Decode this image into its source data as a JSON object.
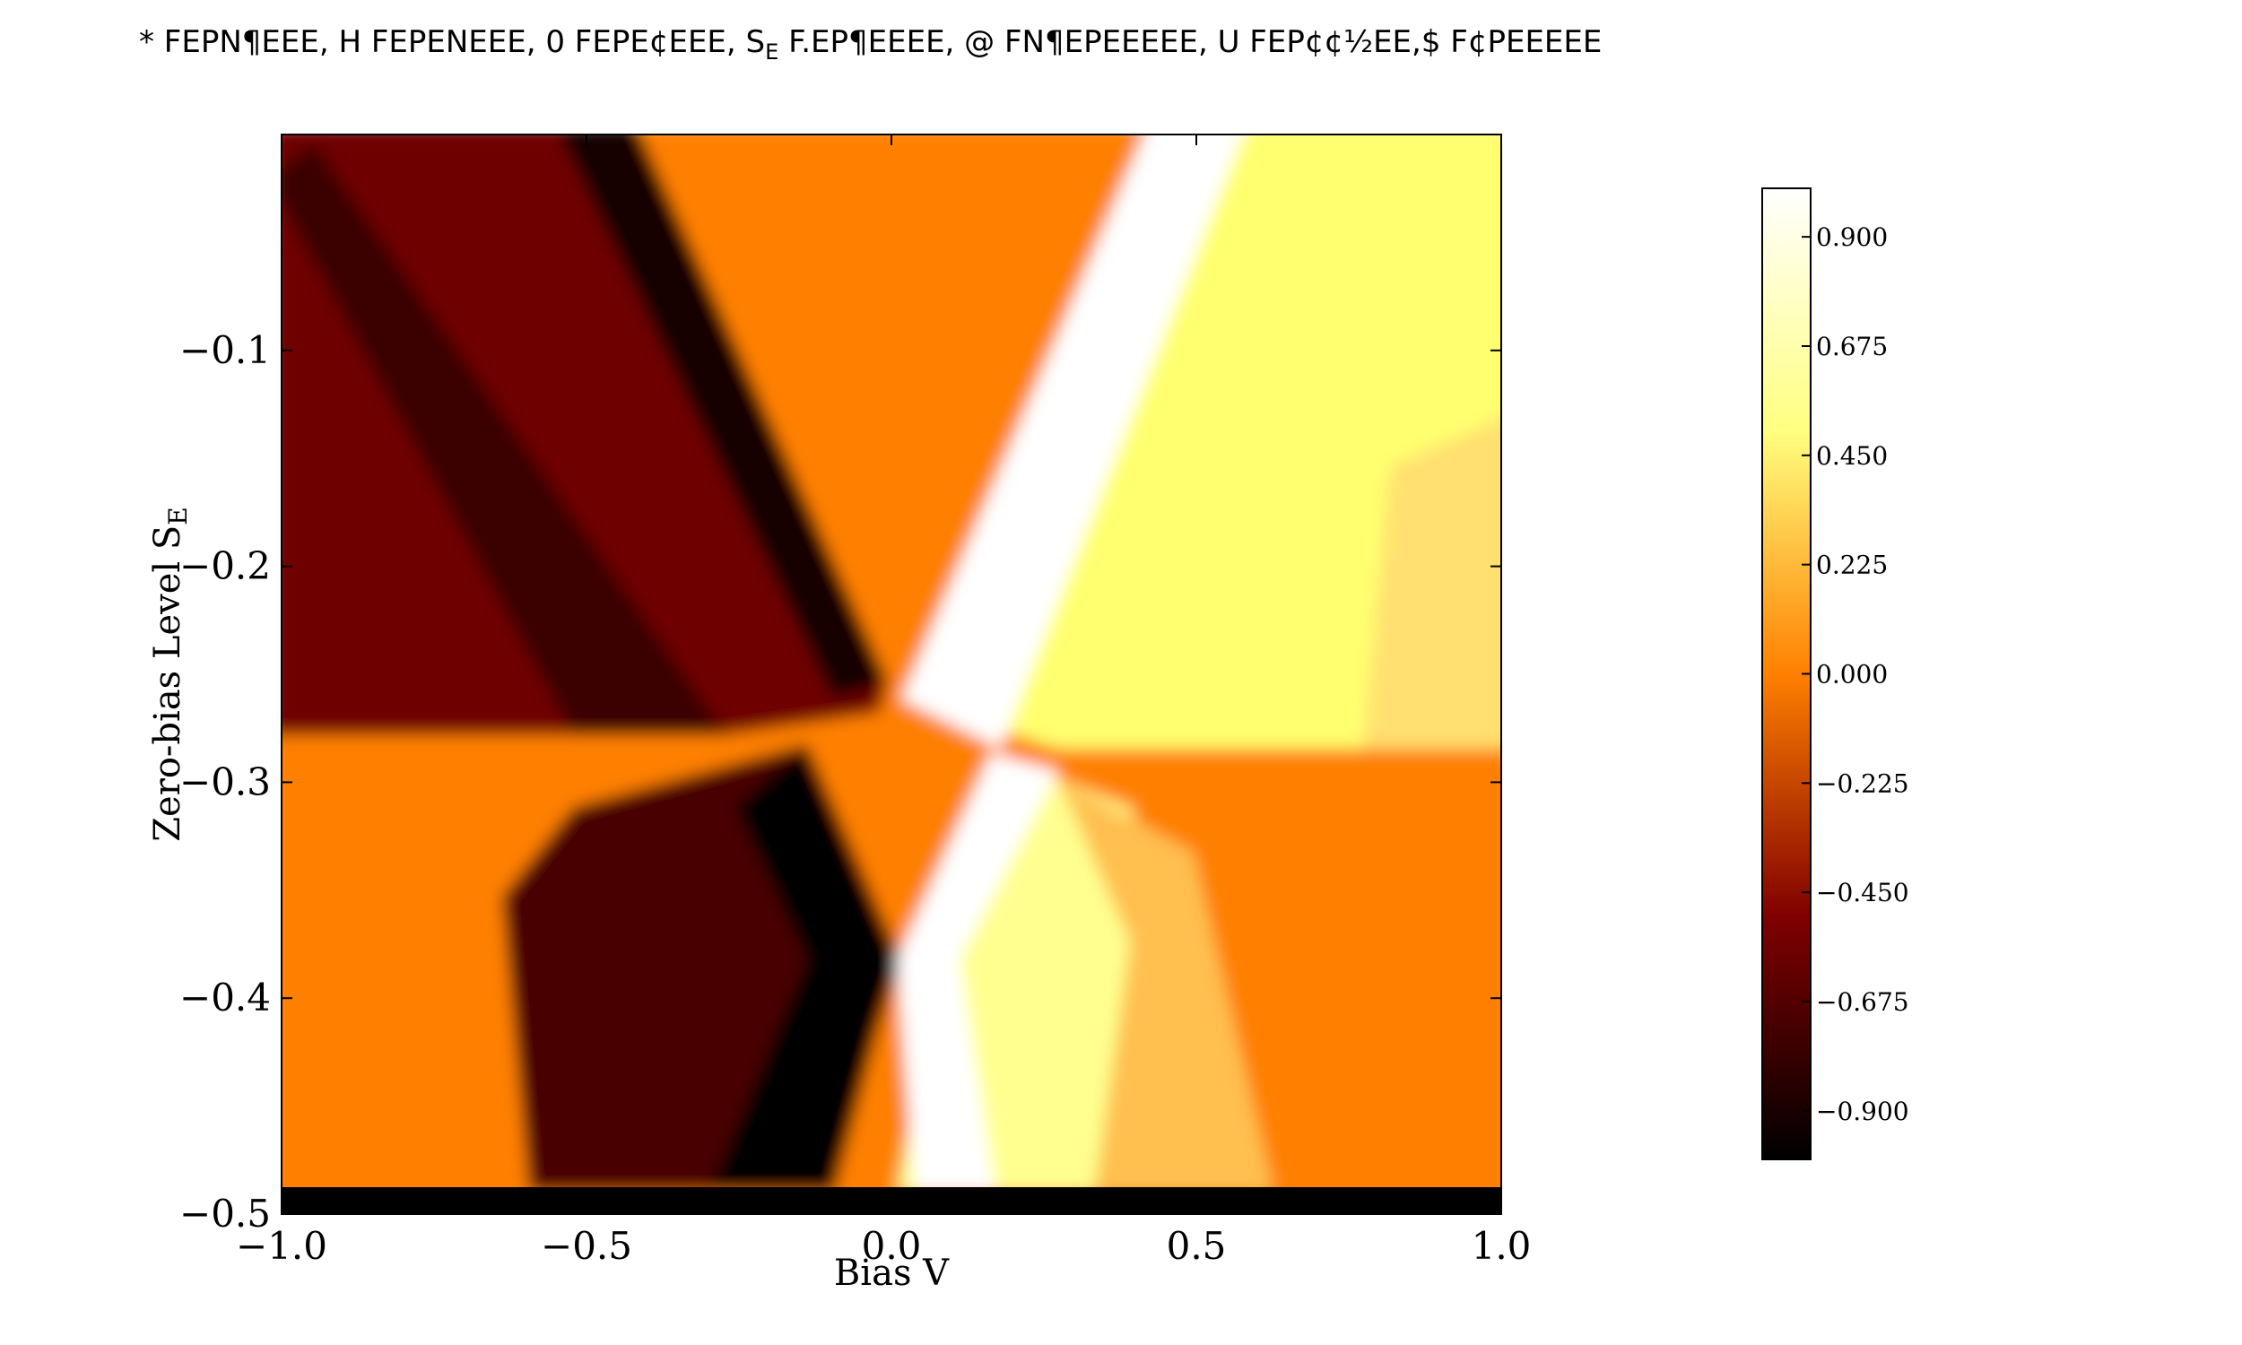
{
  "chart_data": {
    "type": "heatmap",
    "title": "* FEPN¶EEE, H FEPENEEE, 0 FEPE¢EEE, S",
    "title_sub": "E",
    "title_rest": " F.EP¶EEEE, @ FN¶EPEEEEE, U FEP¢¢½EE,$ F¢PEEEEE",
    "xlabel": "Bias V",
    "ylabel": "Zero-bias Level S",
    "ylabel_sub": "E",
    "xlim": [
      -1.0,
      1.0
    ],
    "ylim": [
      -0.5,
      0.0
    ],
    "x_ticks": [
      {
        "value": -1.0,
        "label": "−1.0"
      },
      {
        "value": -0.5,
        "label": "−0.5"
      },
      {
        "value": 0.0,
        "label": "0.0"
      },
      {
        "value": 0.5,
        "label": "0.5"
      },
      {
        "value": 1.0,
        "label": "1.0"
      }
    ],
    "y_ticks": [
      {
        "value": -0.1,
        "label": "−0.1"
      },
      {
        "value": -0.2,
        "label": "−0.2"
      },
      {
        "value": -0.3,
        "label": "−0.3"
      },
      {
        "value": -0.4,
        "label": "−0.4"
      },
      {
        "value": -0.5,
        "label": "−0.5"
      }
    ],
    "colorbar": {
      "range": [
        -1.0,
        1.0
      ],
      "colormap": "afmhot",
      "ticks": [
        {
          "value": 0.9,
          "label": "0.900"
        },
        {
          "value": 0.675,
          "label": "0.675"
        },
        {
          "value": 0.45,
          "label": "0.450"
        },
        {
          "value": 0.225,
          "label": "0.225"
        },
        {
          "value": 0.0,
          "label": "0.000"
        },
        {
          "value": -0.225,
          "label": "−0.225"
        },
        {
          "value": -0.45,
          "label": "−0.450"
        },
        {
          "value": -0.675,
          "label": "−0.675"
        },
        {
          "value": -0.9,
          "label": "−0.900"
        }
      ]
    },
    "grid": false,
    "colors": {
      "black": "#000000",
      "dark_red": "#6e0000",
      "orange": "#ff8000",
      "yellow": "#ffff80",
      "white": "#ffffff"
    }
  }
}
